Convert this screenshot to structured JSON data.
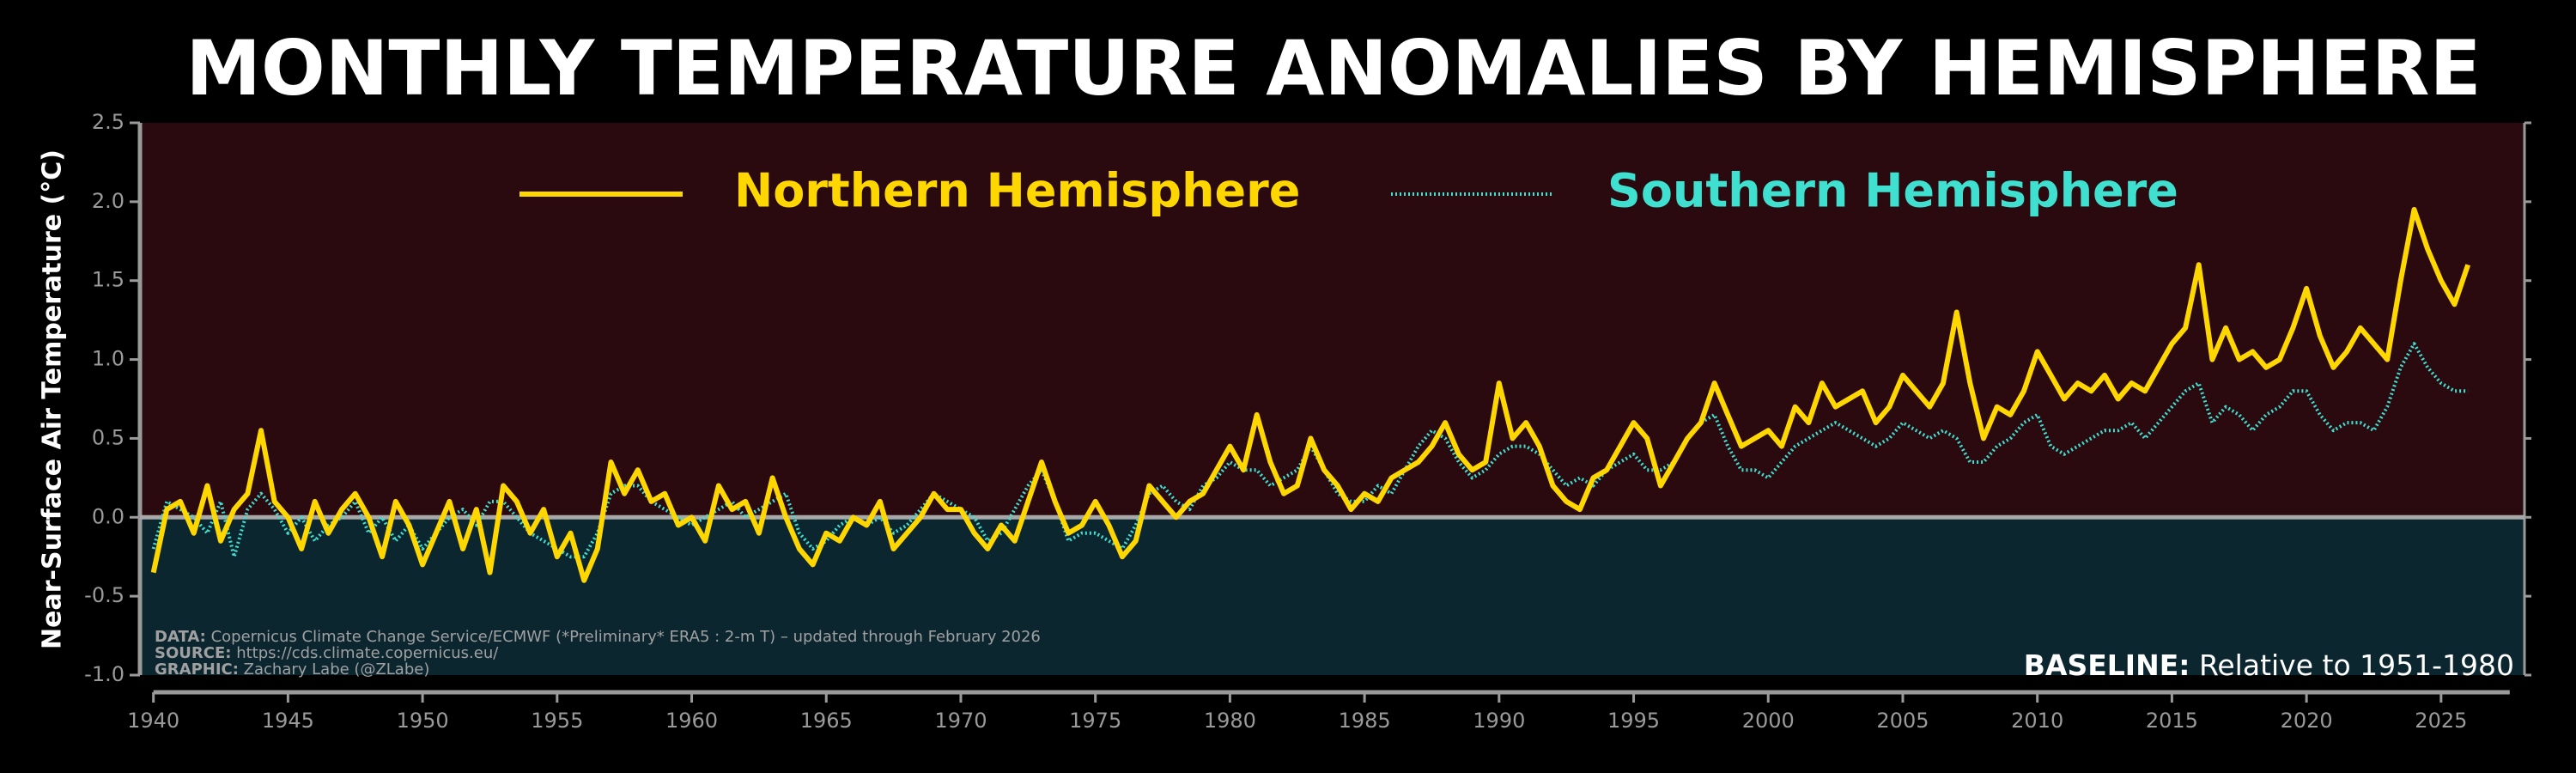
{
  "chart_data": {
    "type": "line",
    "title": "MONTHLY TEMPERATURE ANOMALIES BY HEMISPHERE",
    "ylabel": "Near-Surface Air Temperature (°C)",
    "xlim": [
      1939.5,
      2028.1
    ],
    "ylim": [
      -1.0,
      2.5
    ],
    "xticks": [
      1940,
      1945,
      1950,
      1955,
      1960,
      1965,
      1970,
      1975,
      1980,
      1985,
      1990,
      1995,
      2000,
      2005,
      2010,
      2015,
      2020,
      2025
    ],
    "yticks": [
      {
        "value": -1.0,
        "label": "-1.0"
      },
      -0.5,
      {
        "value": 0.0,
        "label": "0.0"
      },
      0.5,
      {
        "value": 1.0,
        "label": "1.0"
      },
      1.5,
      {
        "value": 2.0,
        "label": "2.0"
      },
      2.5
    ],
    "above_color": "#2a0a0f",
    "below_color": "#0c2630",
    "x": [
      1940,
      1940.5,
      1941,
      1941.5,
      1942,
      1942.5,
      1943,
      1943.5,
      1944,
      1944.5,
      1945,
      1945.5,
      1946,
      1946.5,
      1947,
      1947.5,
      1948,
      1948.5,
      1949,
      1949.5,
      1950,
      1950.5,
      1951,
      1951.5,
      1952,
      1952.5,
      1953,
      1953.5,
      1954,
      1954.5,
      1955,
      1955.5,
      1956,
      1956.5,
      1957,
      1957.5,
      1958,
      1958.5,
      1959,
      1959.5,
      1960,
      1960.5,
      1961,
      1961.5,
      1962,
      1962.5,
      1963,
      1963.5,
      1964,
      1964.5,
      1965,
      1965.5,
      1966,
      1966.5,
      1967,
      1967.5,
      1968,
      1968.5,
      1969,
      1969.5,
      1970,
      1970.5,
      1971,
      1971.5,
      1972,
      1972.5,
      1973,
      1973.5,
      1974,
      1974.5,
      1975,
      1975.5,
      1976,
      1976.5,
      1977,
      1977.5,
      1978,
      1978.5,
      1979,
      1979.5,
      1980,
      1980.5,
      1981,
      1981.5,
      1982,
      1982.5,
      1983,
      1983.5,
      1984,
      1984.5,
      1985,
      1985.5,
      1986,
      1986.5,
      1987,
      1987.5,
      1988,
      1988.5,
      1989,
      1989.5,
      1990,
      1990.5,
      1991,
      1991.5,
      1992,
      1992.5,
      1993,
      1993.5,
      1994,
      1994.5,
      1995,
      1995.5,
      1996,
      1996.5,
      1997,
      1997.5,
      1998,
      1998.5,
      1999,
      1999.5,
      2000,
      2000.5,
      2001,
      2001.5,
      2002,
      2002.5,
      2003,
      2003.5,
      2004,
      2004.5,
      2005,
      2005.5,
      2006,
      2006.5,
      2007,
      2007.5,
      2008,
      2008.5,
      2009,
      2009.5,
      2010,
      2010.5,
      2011,
      2011.5,
      2012,
      2012.5,
      2013,
      2013.5,
      2014,
      2014.5,
      2015,
      2015.5,
      2016,
      2016.5,
      2017,
      2017.5,
      2018,
      2018.5,
      2019,
      2019.5,
      2020,
      2020.5,
      2021,
      2021.5,
      2022,
      2022.5,
      2023,
      2023.5,
      2024,
      2024.5,
      2025,
      2025.5,
      2026
    ],
    "series": [
      {
        "name": "Southern Hemisphere",
        "color": "#40e0d0",
        "style": "dotted",
        "values": [
          -0.2,
          0.1,
          0.05,
          0.0,
          -0.1,
          0.1,
          -0.25,
          0.05,
          0.15,
          0.05,
          -0.1,
          0.0,
          -0.15,
          -0.05,
          0.0,
          0.1,
          -0.1,
          0.0,
          -0.15,
          -0.05,
          -0.2,
          -0.1,
          0.0,
          0.05,
          -0.05,
          0.1,
          0.1,
          0.0,
          -0.1,
          -0.15,
          -0.2,
          -0.25,
          -0.25,
          -0.1,
          0.15,
          0.2,
          0.2,
          0.1,
          0.05,
          0.0,
          -0.05,
          0.0,
          0.05,
          0.1,
          0.0,
          0.05,
          0.1,
          0.15,
          -0.1,
          -0.2,
          -0.15,
          -0.05,
          0.0,
          -0.05,
          0.0,
          -0.1,
          -0.05,
          0.05,
          0.15,
          0.1,
          0.05,
          0.0,
          -0.15,
          -0.1,
          0.05,
          0.2,
          0.3,
          0.1,
          -0.15,
          -0.1,
          -0.1,
          -0.15,
          -0.2,
          -0.05,
          0.15,
          0.2,
          0.1,
          0.05,
          0.2,
          0.25,
          0.35,
          0.3,
          0.3,
          0.2,
          0.25,
          0.3,
          0.45,
          0.3,
          0.15,
          0.1,
          0.1,
          0.2,
          0.15,
          0.3,
          0.45,
          0.55,
          0.5,
          0.35,
          0.25,
          0.3,
          0.4,
          0.45,
          0.45,
          0.4,
          0.3,
          0.2,
          0.25,
          0.2,
          0.3,
          0.35,
          0.4,
          0.3,
          0.3,
          0.35,
          0.5,
          0.6,
          0.65,
          0.45,
          0.3,
          0.3,
          0.25,
          0.35,
          0.45,
          0.5,
          0.55,
          0.6,
          0.55,
          0.5,
          0.45,
          0.5,
          0.6,
          0.55,
          0.5,
          0.55,
          0.5,
          0.35,
          0.35,
          0.45,
          0.5,
          0.6,
          0.65,
          0.45,
          0.4,
          0.45,
          0.5,
          0.55,
          0.55,
          0.6,
          0.5,
          0.6,
          0.7,
          0.8,
          0.85,
          0.6,
          0.7,
          0.65,
          0.55,
          0.65,
          0.7,
          0.8,
          0.8,
          0.65,
          0.55,
          0.6,
          0.6,
          0.55,
          0.7,
          0.95,
          1.1,
          0.95,
          0.85,
          0.8,
          0.8
        ]
      },
      {
        "name": "Northern Hemisphere",
        "color": "#ffd700",
        "style": "solid",
        "values": [
          -0.35,
          0.05,
          0.1,
          -0.1,
          0.2,
          -0.15,
          0.05,
          0.15,
          0.55,
          0.1,
          0.0,
          -0.2,
          0.1,
          -0.1,
          0.05,
          0.15,
          0.0,
          -0.25,
          0.1,
          -0.05,
          -0.3,
          -0.1,
          0.1,
          -0.2,
          0.05,
          -0.35,
          0.2,
          0.1,
          -0.1,
          0.05,
          -0.25,
          -0.1,
          -0.4,
          -0.2,
          0.35,
          0.15,
          0.3,
          0.1,
          0.15,
          -0.05,
          0.0,
          -0.15,
          0.2,
          0.05,
          0.1,
          -0.1,
          0.25,
          0.0,
          -0.2,
          -0.3,
          -0.1,
          -0.15,
          0.0,
          -0.05,
          0.1,
          -0.2,
          -0.1,
          0.0,
          0.15,
          0.05,
          0.05,
          -0.1,
          -0.2,
          -0.05,
          -0.15,
          0.1,
          0.35,
          0.1,
          -0.1,
          -0.05,
          0.1,
          -0.05,
          -0.25,
          -0.15,
          0.2,
          0.1,
          0.0,
          0.1,
          0.15,
          0.3,
          0.45,
          0.3,
          0.65,
          0.35,
          0.15,
          0.2,
          0.5,
          0.3,
          0.2,
          0.05,
          0.15,
          0.1,
          0.25,
          0.3,
          0.35,
          0.45,
          0.6,
          0.4,
          0.3,
          0.35,
          0.85,
          0.5,
          0.6,
          0.45,
          0.2,
          0.1,
          0.05,
          0.25,
          0.3,
          0.45,
          0.6,
          0.5,
          0.2,
          0.35,
          0.5,
          0.6,
          0.85,
          0.65,
          0.45,
          0.5,
          0.55,
          0.45,
          0.7,
          0.6,
          0.85,
          0.7,
          0.75,
          0.8,
          0.6,
          0.7,
          0.9,
          0.8,
          0.7,
          0.85,
          1.3,
          0.85,
          0.5,
          0.7,
          0.65,
          0.8,
          1.05,
          0.9,
          0.75,
          0.85,
          0.8,
          0.9,
          0.75,
          0.85,
          0.8,
          0.95,
          1.1,
          1.2,
          1.6,
          1.0,
          1.2,
          1.0,
          1.05,
          0.95,
          1.0,
          1.2,
          1.45,
          1.15,
          0.95,
          1.05,
          1.2,
          1.1,
          1.0,
          1.5,
          1.95,
          1.7,
          1.5,
          1.35,
          1.6
        ]
      }
    ],
    "notes": [
      {
        "label": "DATA:",
        "text": "Copernicus Climate Change Service/ECMWF (*Preliminary* ERA5 : 2-m T) – updated through February 2026"
      },
      {
        "label": "SOURCE:",
        "text": "https://cds.climate.copernicus.eu/"
      },
      {
        "label": "GRAPHIC:",
        "text": "Zachary Labe (@ZLabe)"
      }
    ],
    "baseline_note": {
      "label": "BASELINE:",
      "text": "Relative to 1951-1980"
    }
  }
}
